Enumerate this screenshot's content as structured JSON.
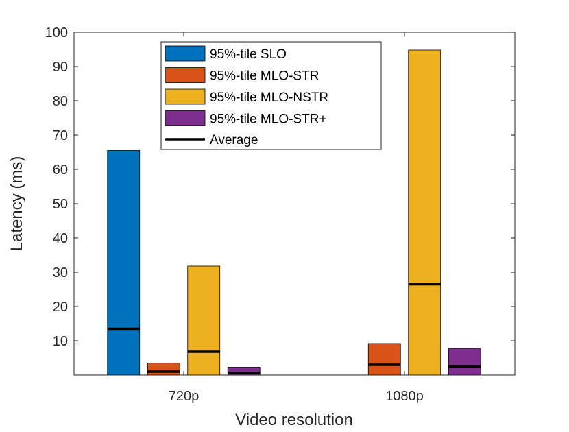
{
  "chart_data": {
    "type": "bar",
    "categories": [
      "720p",
      "1080p"
    ],
    "series": [
      {
        "name": "95%-tile SLO",
        "color": "#0072BD",
        "values": [
          65.5,
          null
        ],
        "average": [
          13.5,
          null
        ]
      },
      {
        "name": "95%-tile MLO-STR",
        "color": "#D95319",
        "values": [
          3.5,
          9.2
        ],
        "average": [
          1.0,
          3.0
        ]
      },
      {
        "name": "95%-tile MLO-NSTR",
        "color": "#EDB120",
        "values": [
          31.8,
          94.8
        ],
        "average": [
          6.8,
          26.5
        ]
      },
      {
        "name": "95%-tile MLO-STR+",
        "color": "#7E2F8E",
        "values": [
          2.3,
          7.8
        ],
        "average": [
          0.6,
          2.5
        ]
      }
    ],
    "average_legend_label": "Average",
    "title": "",
    "xlabel": "Video resolution",
    "ylabel": "Latency (ms)",
    "ylim": [
      0,
      100
    ],
    "yticks": [
      10,
      20,
      30,
      40,
      50,
      60,
      70,
      80,
      90,
      100
    ],
    "legend_position": "top-center",
    "grid": false
  }
}
